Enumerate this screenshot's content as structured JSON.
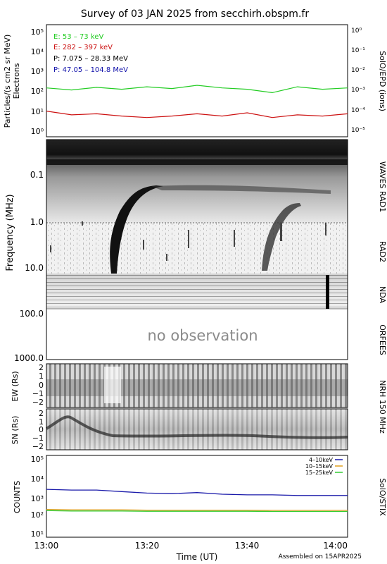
{
  "title": "Survey of 03 JAN 2025 from secchirh.obspm.fr",
  "footer": {
    "time_axis_label": "Time (UT)",
    "assembled": "Assembled on 15APR2025",
    "time_ticks": [
      "13:00",
      "13:20",
      "13:40",
      "14:00"
    ]
  },
  "colors": {
    "electron_low": "#22cc22",
    "electron_high": "#cc1111",
    "proton_low": "#000000",
    "proton_high": "#1111aa",
    "stix_4_10": "#1a1aaa",
    "stix_10_15": "#e0a020",
    "stix_15_25": "#33cc33"
  },
  "panels": {
    "epd": {
      "ylabel_line1": "Particles/(s cm2 sr MeV)",
      "ylabel_line2": "Electrons",
      "right_label": "SolO/EPD (ions)",
      "left_ticks": [
        "10⁵",
        "10⁴",
        "10³",
        "10²",
        "10¹",
        "10⁰"
      ],
      "right_ticks": [
        "10⁰",
        "10⁻¹",
        "10⁻²",
        "10⁻³",
        "10⁻⁴",
        "10⁻⁵"
      ],
      "legend": [
        {
          "label": "E: 53 – 73 keV",
          "color_key": "electron_low"
        },
        {
          "label": "E: 282 – 397 keV",
          "color_key": "electron_high"
        },
        {
          "label": "P: 7.075 – 28.33 MeV",
          "color_key": "proton_low"
        },
        {
          "label": "P: 47.05 – 104.8 MeV",
          "color_key": "proton_high"
        }
      ]
    },
    "radio": {
      "ylabel": "Frequency (MHz)",
      "ticks": [
        "0.1",
        "1.0",
        "10.0",
        "100.0",
        "1000.0"
      ],
      "instrument_labels": [
        "WAVES RAD1",
        "RAD2",
        "NDA",
        "ORFEES"
      ],
      "no_observation": "no observation"
    },
    "nrh": {
      "ew_label": "EW (Rs)",
      "sn_label": "SN (Rs)",
      "right_label": "NRH 150 MHz",
      "ticks": [
        "2",
        "1",
        "0",
        "−1",
        "−2"
      ]
    },
    "stix": {
      "ylabel": "COUNTS",
      "right_label": "SolO/STIX",
      "ticks": [
        "10⁵",
        "10⁴",
        "10³",
        "10²",
        "10¹"
      ],
      "legend": [
        {
          "label": "4–10keV",
          "color_key": "stix_4_10"
        },
        {
          "label": "10–15keV",
          "color_key": "stix_10_15"
        },
        {
          "label": "15–25keV",
          "color_key": "stix_15_25"
        }
      ]
    }
  },
  "chart_data": [
    {
      "type": "line",
      "title": "",
      "ylabel": "Particles/(s cm2 sr MeV)",
      "xlabel": "",
      "yscale": "log",
      "ylim": [
        1,
        100000
      ],
      "xlim": [
        "13:00",
        "14:00"
      ],
      "x": [
        "13:00",
        "13:05",
        "13:10",
        "13:15",
        "13:20",
        "13:25",
        "13:30",
        "13:35",
        "13:40",
        "13:45",
        "13:50",
        "13:55",
        "14:00"
      ],
      "series": [
        {
          "name": "E: 53 – 73 keV",
          "values": [
            150,
            120,
            160,
            130,
            170,
            140,
            200,
            150,
            130,
            90,
            170,
            130,
            150
          ]
        },
        {
          "name": "E: 282 – 397 keV",
          "values": [
            12,
            8,
            9,
            7,
            6,
            7,
            9,
            7,
            10,
            6,
            8,
            7,
            9
          ]
        }
      ]
    },
    {
      "type": "line",
      "title": "",
      "ylabel": "COUNTS",
      "xlabel": "Time (UT)",
      "yscale": "log",
      "ylim": [
        10,
        100000
      ],
      "xlim": [
        "13:00",
        "14:00"
      ],
      "x": [
        "13:00",
        "13:05",
        "13:10",
        "13:15",
        "13:20",
        "13:25",
        "13:30",
        "13:35",
        "13:40",
        "13:45",
        "13:50",
        "13:55",
        "14:00"
      ],
      "series": [
        {
          "name": "4–10keV",
          "values": [
            2500,
            2300,
            2300,
            1900,
            1600,
            1500,
            1700,
            1400,
            1300,
            1300,
            1200,
            1200,
            1200
          ]
        },
        {
          "name": "10–15keV",
          "values": [
            230,
            220,
            220,
            220,
            210,
            210,
            210,
            210,
            210,
            205,
            205,
            205,
            205
          ]
        },
        {
          "name": "15–25keV",
          "values": [
            200,
            190,
            190,
            190,
            185,
            185,
            185,
            185,
            185,
            180,
            180,
            180,
            180
          ]
        }
      ]
    }
  ]
}
